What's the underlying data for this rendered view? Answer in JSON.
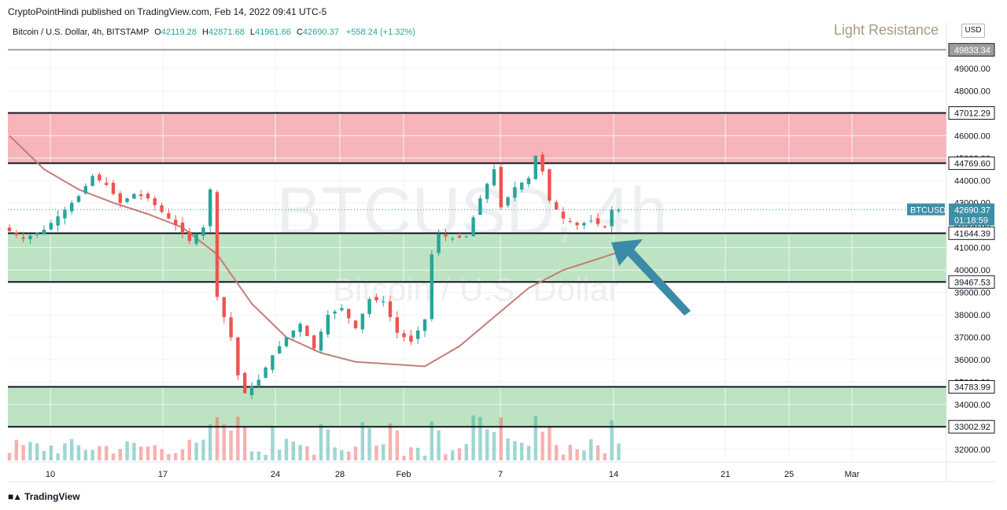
{
  "publication": "CryptoPointHindi published on TradingView.com, Feb 14, 2022 09:41 UTC-5",
  "legend": {
    "title": "Bitcoin / U.S. Dollar, 4h, BITSTAMP",
    "o_label": "O",
    "o": "42119.28",
    "h_label": "H",
    "h": "42871.68",
    "l_label": "L",
    "l": "41961.66",
    "c_label": "C",
    "c": "42690.37",
    "change": "+558.24 (+1.32%)"
  },
  "currency": "USD",
  "watermark": {
    "symbol": "BTCUSD, 4h",
    "name": "Bitcoin / U.S. Dollar"
  },
  "annotation": "Light Resistance",
  "footer_logo": "TradingView",
  "colors": {
    "up": "#26a69a",
    "down": "#ef5350",
    "resistance_zone": "#f7b4b9",
    "support_zone": "#bde3c2",
    "moving_average": "#c27d7a",
    "arrow": "#3b8aa8",
    "level_line": "#131722"
  },
  "chart_data": {
    "type": "candlestick",
    "symbol": "BTCUSD",
    "interval": "4h",
    "exchange": "BITSTAMP",
    "ylim": [
      31500,
      50300
    ],
    "price_ticks": [
      32000,
      33000,
      34000,
      35000,
      36000,
      37000,
      38000,
      39000,
      40000,
      41000,
      42000,
      43000,
      44000,
      45000,
      46000,
      47000,
      48000,
      49000
    ],
    "x_ticks": [
      "10",
      "17",
      "24",
      "28",
      "Feb",
      "7",
      "14",
      "21",
      "25",
      "Mar"
    ],
    "levels": [
      {
        "value": 49833.34,
        "label": "49833.34"
      },
      {
        "value": 47012.29,
        "label": "47012.29"
      },
      {
        "value": 44769.6,
        "label": "44769.60"
      },
      {
        "value": 41644.39,
        "label": "41644.39"
      },
      {
        "value": 39467.53,
        "label": "39467.53"
      },
      {
        "value": 34783.99,
        "label": "34783.99"
      },
      {
        "value": 33002.92,
        "label": "33002.92"
      }
    ],
    "zones": [
      {
        "kind": "resistance",
        "from": 44769.6,
        "to": 47012.29
      },
      {
        "kind": "support",
        "from": 39467.53,
        "to": 41644.39
      },
      {
        "kind": "support",
        "from": 33002.92,
        "to": 34783.99
      }
    ],
    "current_price": {
      "symbol": "BTCUSD",
      "price": "42690.37",
      "countdown": "01:18:59",
      "value": 42690.37
    },
    "path": [
      [
        0,
        41900
      ],
      [
        3,
        41400
      ],
      [
        6,
        41800
      ],
      [
        9,
        42700
      ],
      [
        11,
        43300
      ],
      [
        13,
        44200
      ],
      [
        15,
        43800
      ],
      [
        17,
        43000
      ],
      [
        19,
        43400
      ],
      [
        21,
        43200
      ],
      [
        23,
        42600
      ],
      [
        25,
        42000
      ],
      [
        27,
        41300
      ],
      [
        29,
        41900
      ],
      [
        30,
        43600
      ],
      [
        31,
        38800
      ],
      [
        33,
        37000
      ],
      [
        34,
        35300
      ],
      [
        35,
        34500
      ],
      [
        37,
        35100
      ],
      [
        39,
        36200
      ],
      [
        41,
        37000
      ],
      [
        43,
        37600
      ],
      [
        45,
        36500
      ],
      [
        47,
        38000
      ],
      [
        49,
        38300
      ],
      [
        51,
        37400
      ],
      [
        53,
        38700
      ],
      [
        55,
        38600
      ],
      [
        57,
        37200
      ],
      [
        59,
        36800
      ],
      [
        61,
        37800
      ],
      [
        62,
        40700
      ],
      [
        63,
        41600
      ],
      [
        65,
        41400
      ],
      [
        67,
        41500
      ],
      [
        69,
        43200
      ],
      [
        71,
        44500
      ],
      [
        72,
        42800
      ],
      [
        74,
        43700
      ],
      [
        76,
        44100
      ],
      [
        77,
        45100
      ],
      [
        78,
        44400
      ],
      [
        79,
        43100
      ],
      [
        81,
        42300
      ],
      [
        83,
        42000
      ],
      [
        85,
        42200
      ],
      [
        87,
        41900
      ],
      [
        88,
        42690
      ]
    ],
    "moving_average": [
      [
        0,
        46000
      ],
      [
        5,
        44500
      ],
      [
        10,
        43600
      ],
      [
        15,
        43000
      ],
      [
        20,
        42500
      ],
      [
        25,
        41900
      ],
      [
        30,
        40700
      ],
      [
        35,
        38500
      ],
      [
        40,
        37000
      ],
      [
        45,
        36300
      ],
      [
        50,
        35900
      ],
      [
        55,
        35800
      ],
      [
        60,
        35700
      ],
      [
        65,
        36600
      ],
      [
        70,
        37900
      ],
      [
        75,
        39200
      ],
      [
        80,
        40000
      ],
      [
        85,
        40500
      ],
      [
        88,
        40800
      ]
    ]
  }
}
